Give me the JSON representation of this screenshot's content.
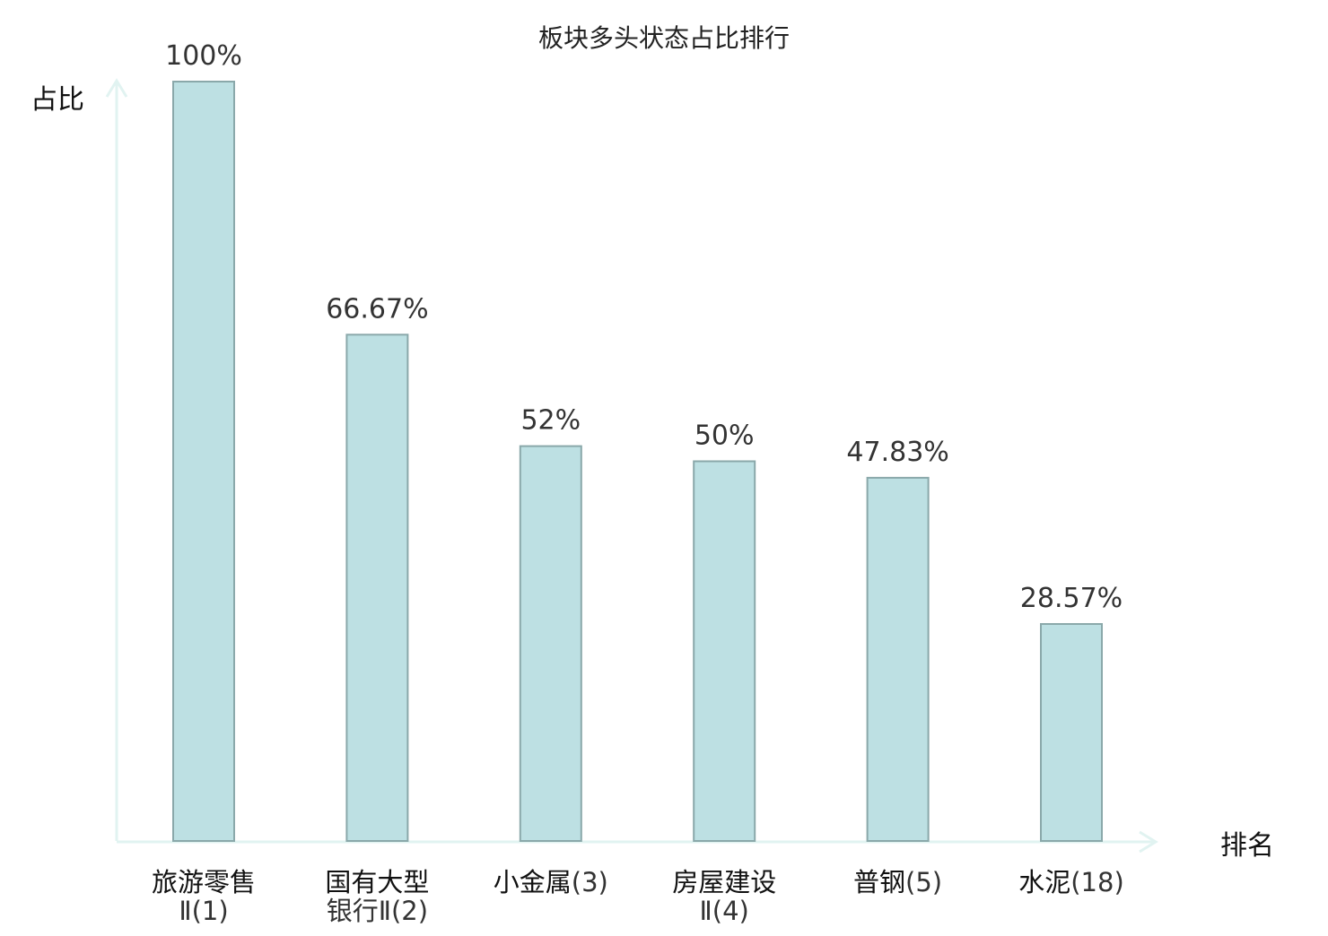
{
  "chart_data": {
    "type": "bar",
    "title": "板块多头状态占比排行",
    "ylabel": "占比",
    "xlabel": "排名",
    "ylim": [
      0,
      100
    ],
    "grid": false,
    "categories": [
      {
        "name": "旅游零售",
        "suffix": "Ⅱ(1)",
        "highlight": false
      },
      {
        "name": "国有大型",
        "suffix": "银行Ⅱ(2)",
        "highlight": false
      },
      {
        "name": "小金属",
        "suffix": "(3)",
        "highlight": false
      },
      {
        "name": "房屋建设",
        "suffix": "Ⅱ(4)",
        "highlight": false
      },
      {
        "name": "普钢",
        "suffix": "(5)",
        "highlight": false
      },
      {
        "name": "水泥",
        "suffix": "(18)",
        "highlight": true
      }
    ],
    "values": [
      100,
      66.67,
      52,
      50,
      47.83,
      28.57
    ],
    "value_labels": [
      "100%",
      "66.67%",
      "52%",
      "50%",
      "47.83%",
      "28.57%"
    ],
    "colors": {
      "bar_fill": "#bde0e3",
      "bar_stroke": "#8aa8aa",
      "axis": "#e1f3f1",
      "highlight": "#dd1111"
    }
  }
}
